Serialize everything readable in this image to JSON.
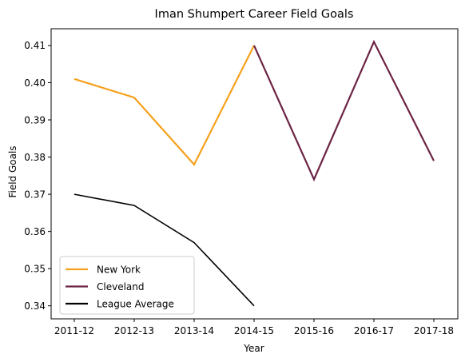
{
  "chart_data": {
    "type": "line",
    "title": "Iman Shumpert Career Field Goals",
    "xlabel": "Year",
    "ylabel": "Field Goals",
    "categories": [
      "2011-12",
      "2012-13",
      "2013-14",
      "2014-15",
      "2015-16",
      "2016-17",
      "2017-18"
    ],
    "ylim": [
      0.3365,
      0.4145
    ],
    "yticks": [
      "0.34",
      "0.35",
      "0.36",
      "0.37",
      "0.38",
      "0.39",
      "0.40",
      "0.41"
    ],
    "grid": false,
    "legend_position": "lower-left",
    "series": [
      {
        "name": "New York",
        "color": "#f5a11c",
        "x": [
          "2011-12",
          "2012-13",
          "2013-14",
          "2014-15"
        ],
        "values": [
          0.401,
          0.396,
          0.378,
          0.41
        ]
      },
      {
        "name": "Cleveland",
        "color": "#6c2344",
        "x": [
          "2014-15",
          "2015-16",
          "2016-17",
          "2017-18"
        ],
        "values": [
          0.41,
          0.374,
          0.411,
          0.379
        ]
      },
      {
        "name": "League Average",
        "color": "#000000",
        "x": [
          "2011-12",
          "2012-13",
          "2013-14",
          "2014-15"
        ],
        "values": [
          0.37,
          0.367,
          0.357,
          0.34
        ]
      }
    ]
  }
}
